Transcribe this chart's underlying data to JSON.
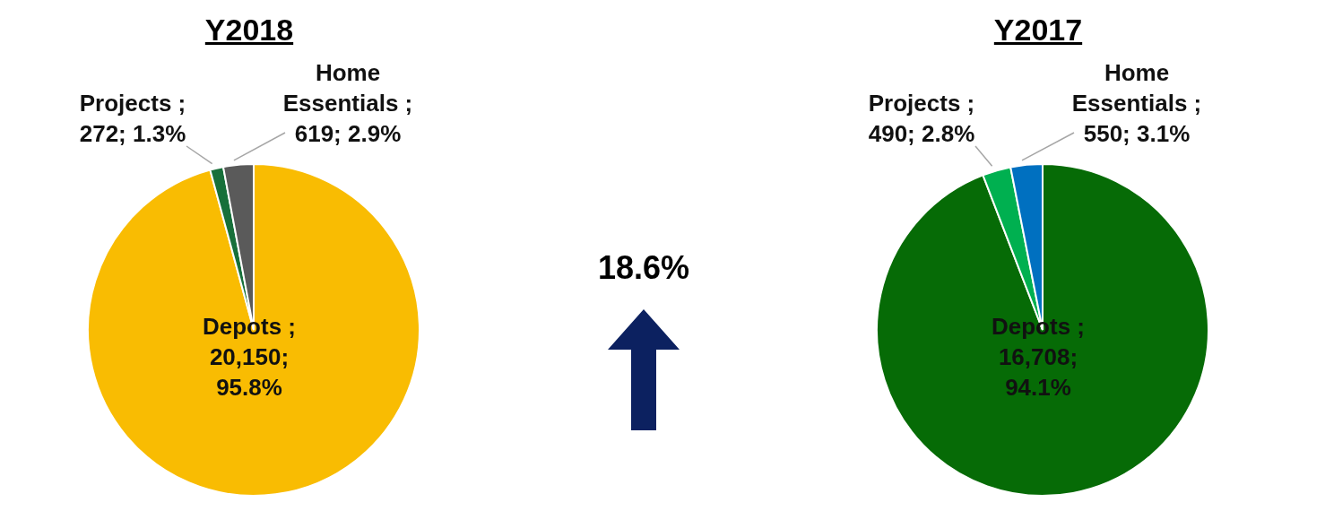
{
  "chart_data": [
    {
      "type": "pie",
      "title": "Y2018",
      "categories": [
        "Depots",
        "Projects",
        "Home Essentials"
      ],
      "values": [
        20150,
        272,
        619
      ],
      "colors": [
        "#f9bc02",
        "#17703a",
        "#5a5a5a"
      ],
      "value_labels": [
        "; 20,150; 95.8%",
        "; 272; 1.3%",
        "; 619; 2.9%"
      ]
    },
    {
      "type": "other",
      "annotations": [
        "18.6%"
      ]
    },
    {
      "type": "pie",
      "title": "Y2017",
      "categories": [
        "Depots",
        "Projects",
        "Home Essentials"
      ],
      "values": [
        16708,
        490,
        550
      ],
      "colors": [
        "#066b06",
        "#00b050",
        "#0070c0"
      ],
      "value_labels": [
        "; 16,708; 94.1%",
        "; 490; 2.8%",
        "; 550; 3.1%"
      ]
    }
  ]
}
